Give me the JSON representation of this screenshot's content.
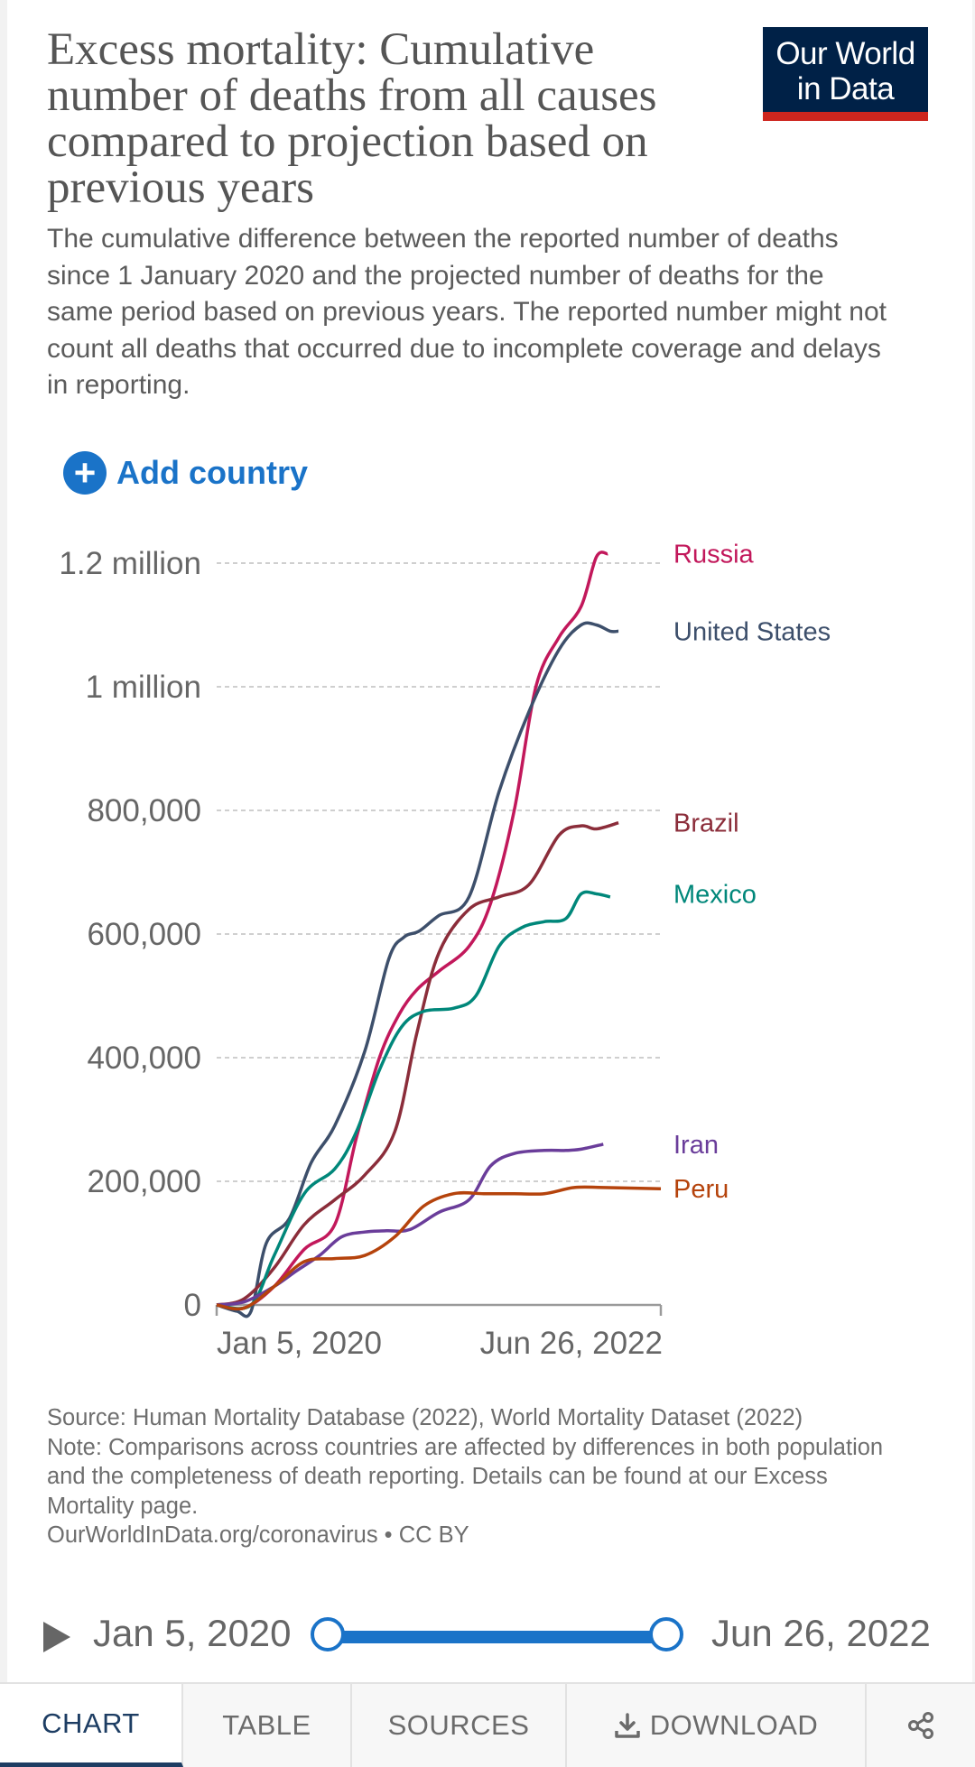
{
  "header": {
    "title": "Excess mortality: Cumulative number of deaths from all causes compared to projection based on previous years",
    "subtitle": "The cumulative difference between the reported number of deaths since 1 January 2020 and the projected number of deaths for the same period based on previous years. The reported number might not count all deaths that occurred due to incomplete coverage and delays in reporting.",
    "logo_line1": "Our World",
    "logo_line2": "in Data"
  },
  "controls": {
    "add_country_label": "Add country",
    "add_country_icon": "plus-circle-icon"
  },
  "colors": {
    "accent": "#1a73c8",
    "logo_bg": "#002147",
    "logo_bar": "#ce261e"
  },
  "chart_data": {
    "type": "line",
    "x_start": "Jan 5, 2020",
    "x_end": "Jun 26, 2022",
    "y_ticks": [
      {
        "value": 0,
        "label": "0"
      },
      {
        "value": 200000,
        "label": "200,000"
      },
      {
        "value": 400000,
        "label": "400,000"
      },
      {
        "value": 600000,
        "label": "600,000"
      },
      {
        "value": 800000,
        "label": "800,000"
      },
      {
        "value": 1000000,
        "label": "1 million"
      },
      {
        "value": 1200000,
        "label": "1.2 million"
      }
    ],
    "ylim": [
      0,
      1200000
    ],
    "grid": "horizontal dashed",
    "x_ticks": [
      "Jan 5, 2020",
      "Jun 26, 2022"
    ],
    "legend": "right, inline labels",
    "series": [
      {
        "name": "Russia",
        "color": "#c2185b",
        "x": [
          "2020-01-05",
          "2020-03-01",
          "2020-05-01",
          "2020-07-01",
          "2020-09-01",
          "2020-10-15",
          "2020-12-01",
          "2021-01-10",
          "2021-02-15",
          "2021-04-01",
          "2021-06-01",
          "2021-07-15",
          "2021-09-01",
          "2021-10-15",
          "2021-12-01",
          "2022-01-15",
          "2022-02-15",
          "2022-03-10"
        ],
        "y": [
          0,
          -5000,
          30000,
          90000,
          130000,
          270000,
          400000,
          470000,
          510000,
          540000,
          580000,
          650000,
          800000,
          1000000,
          1080000,
          1130000,
          1210000,
          1215000
        ]
      },
      {
        "name": "United States",
        "color": "#3d4f6b",
        "x": [
          "2020-01-05",
          "2020-02-15",
          "2020-03-15",
          "2020-04-15",
          "2020-06-01",
          "2020-07-15",
          "2020-09-01",
          "2020-11-01",
          "2020-12-20",
          "2021-01-20",
          "2021-02-20",
          "2021-04-01",
          "2021-06-01",
          "2021-08-01",
          "2021-10-01",
          "2021-12-01",
          "2022-01-15",
          "2022-02-15",
          "2022-03-15",
          "2022-04-01"
        ],
        "y": [
          0,
          -10000,
          -10000,
          100000,
          140000,
          230000,
          290000,
          410000,
          560000,
          595000,
          605000,
          630000,
          660000,
          830000,
          960000,
          1060000,
          1100000,
          1100000,
          1090000,
          1090000
        ]
      },
      {
        "name": "Brazil",
        "color": "#8b2d3a",
        "x": [
          "2020-01-05",
          "2020-03-01",
          "2020-05-01",
          "2020-07-01",
          "2020-09-01",
          "2020-11-01",
          "2021-01-01",
          "2021-02-15",
          "2021-04-01",
          "2021-06-01",
          "2021-08-01",
          "2021-10-01",
          "2021-12-01",
          "2022-01-15",
          "2022-02-15",
          "2022-04-01"
        ],
        "y": [
          0,
          10000,
          60000,
          130000,
          170000,
          210000,
          280000,
          440000,
          570000,
          640000,
          660000,
          680000,
          760000,
          775000,
          770000,
          780000
        ]
      },
      {
        "name": "Mexico",
        "color": "#00877a",
        "x": [
          "2020-01-05",
          "2020-03-15",
          "2020-05-01",
          "2020-07-01",
          "2020-09-01",
          "2020-10-15",
          "2020-12-01",
          "2021-01-15",
          "2021-03-01",
          "2021-05-01",
          "2021-06-15",
          "2021-08-01",
          "2021-09-15",
          "2021-11-01",
          "2021-12-15",
          "2022-01-15",
          "2022-02-15",
          "2022-03-15"
        ],
        "y": [
          0,
          0,
          80000,
          180000,
          220000,
          280000,
          380000,
          450000,
          475000,
          480000,
          500000,
          580000,
          610000,
          620000,
          625000,
          665000,
          665000,
          660000
        ]
      },
      {
        "name": "Iran",
        "color": "#6a3d9a",
        "x": [
          "2020-01-05",
          "2020-03-01",
          "2020-05-01",
          "2020-06-15",
          "2020-08-01",
          "2020-09-15",
          "2020-11-01",
          "2020-12-15",
          "2021-02-01",
          "2021-04-01",
          "2021-06-01",
          "2021-07-15",
          "2021-09-01",
          "2021-11-01",
          "2021-12-15",
          "2022-01-15",
          "2022-03-01"
        ],
        "y": [
          0,
          5000,
          30000,
          55000,
          80000,
          110000,
          118000,
          120000,
          122000,
          150000,
          170000,
          225000,
          245000,
          250000,
          250000,
          252000,
          260000
        ]
      },
      {
        "name": "Peru",
        "color": "#b5430c",
        "x": [
          "2020-01-05",
          "2020-03-01",
          "2020-05-01",
          "2020-07-01",
          "2020-09-01",
          "2020-11-01",
          "2021-01-01",
          "2021-03-01",
          "2021-05-01",
          "2021-07-01",
          "2021-09-01",
          "2021-11-01",
          "2022-01-01",
          "2022-03-01",
          "2022-06-26"
        ],
        "y": [
          0,
          -5000,
          30000,
          70000,
          75000,
          80000,
          110000,
          160000,
          180000,
          180000,
          180000,
          180000,
          190000,
          190000,
          188000
        ]
      }
    ]
  },
  "footer": {
    "source": "Source: Human Mortality Database (2022), World Mortality Dataset (2022)",
    "note": "Note: Comparisons across countries are affected by differences in both population and the completeness of death reporting. Details can be found at our Excess Mortality page.",
    "credit": "OurWorldInData.org/coronavirus • CC BY"
  },
  "timeline": {
    "start": "Jan 5, 2020",
    "end": "Jun 26, 2022",
    "play_icon": "play-icon"
  },
  "tabs": {
    "chart": "CHART",
    "table": "TABLE",
    "sources": "SOURCES",
    "download": "DOWNLOAD",
    "download_icon": "download-icon",
    "share_icon": "share-icon"
  }
}
